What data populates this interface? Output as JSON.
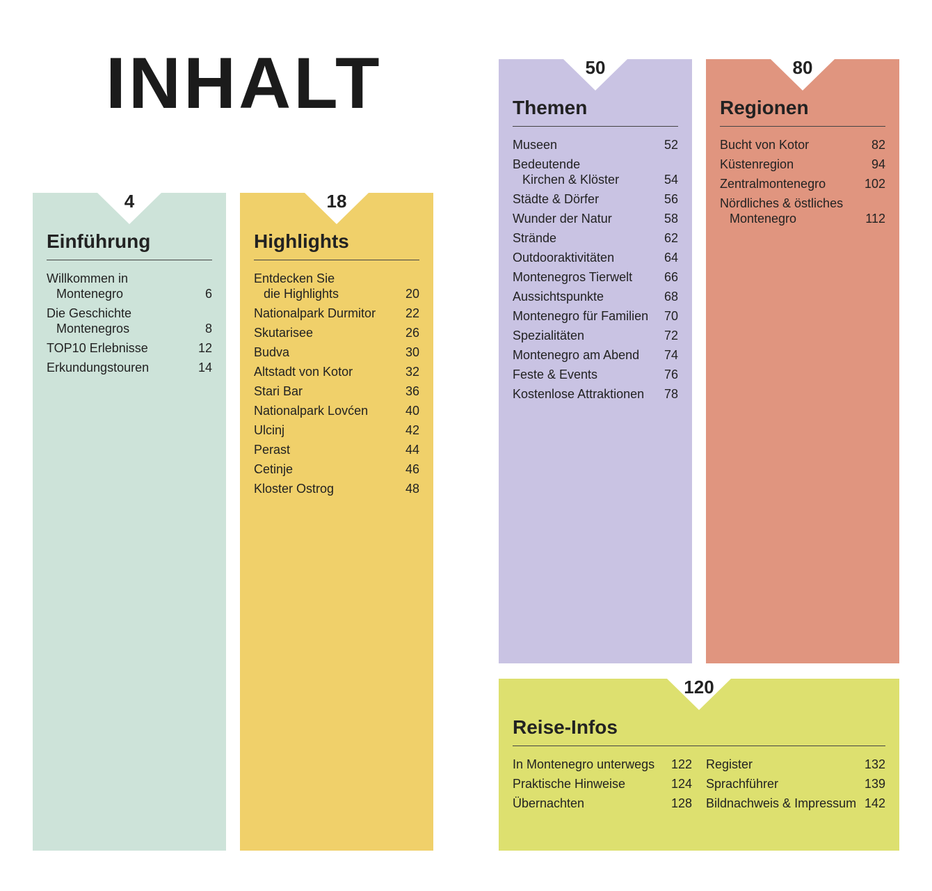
{
  "title": "INHALT",
  "sections": [
    {
      "page": 4,
      "title": "Einführung",
      "columns": [
        [
          {
            "lines": [
              "Willkommen in",
              "Montenegro"
            ],
            "page": 6
          },
          {
            "lines": [
              "Die Geschichte",
              "Montenegros"
            ],
            "page": 8
          },
          {
            "lines": [
              "TOP10 Erlebnisse"
            ],
            "page": 12
          },
          {
            "lines": [
              "Erkundungstouren"
            ],
            "page": 14
          }
        ]
      ]
    },
    {
      "page": 18,
      "title": "Highlights",
      "columns": [
        [
          {
            "lines": [
              "Entdecken Sie",
              "die Highlights"
            ],
            "page": 20
          },
          {
            "lines": [
              "Nationalpark Durmitor"
            ],
            "page": 22
          },
          {
            "lines": [
              "Skutarisee"
            ],
            "page": 26
          },
          {
            "lines": [
              "Budva"
            ],
            "page": 30
          },
          {
            "lines": [
              "Altstadt von Kotor"
            ],
            "page": 32
          },
          {
            "lines": [
              "Stari Bar"
            ],
            "page": 36
          },
          {
            "lines": [
              "Nationalpark Lovćen"
            ],
            "page": 40
          },
          {
            "lines": [
              "Ulcinj"
            ],
            "page": 42
          },
          {
            "lines": [
              "Perast"
            ],
            "page": 44
          },
          {
            "lines": [
              "Cetinje"
            ],
            "page": 46
          },
          {
            "lines": [
              "Kloster Ostrog"
            ],
            "page": 48
          }
        ]
      ]
    },
    {
      "page": 50,
      "title": "Themen",
      "columns": [
        [
          {
            "lines": [
              "Museen"
            ],
            "page": 52
          },
          {
            "lines": [
              "Bedeutende",
              "Kirchen & Klöster"
            ],
            "page": 54
          },
          {
            "lines": [
              "Städte & Dörfer"
            ],
            "page": 56
          },
          {
            "lines": [
              "Wunder der Natur"
            ],
            "page": 58
          },
          {
            "lines": [
              "Strände"
            ],
            "page": 62
          },
          {
            "lines": [
              "Outdooraktivitäten"
            ],
            "page": 64
          },
          {
            "lines": [
              "Montenegros Tierwelt"
            ],
            "page": 66
          },
          {
            "lines": [
              "Aussichtspunkte"
            ],
            "page": 68
          },
          {
            "lines": [
              "Montenegro für Familien"
            ],
            "page": 70
          },
          {
            "lines": [
              "Spezialitäten"
            ],
            "page": 72
          },
          {
            "lines": [
              "Montenegro am Abend"
            ],
            "page": 74
          },
          {
            "lines": [
              "Feste & Events"
            ],
            "page": 76
          },
          {
            "lines": [
              "Kostenlose Attraktionen"
            ],
            "page": 78
          }
        ]
      ]
    },
    {
      "page": 80,
      "title": "Regionen",
      "columns": [
        [
          {
            "lines": [
              "Bucht von Kotor"
            ],
            "page": 82
          },
          {
            "lines": [
              "Küstenregion"
            ],
            "page": 94
          },
          {
            "lines": [
              "Zentralmontenegro"
            ],
            "page": 102
          },
          {
            "lines": [
              "Nördliches & östliches",
              "Montenegro"
            ],
            "page": 112
          }
        ]
      ]
    },
    {
      "page": 120,
      "title": "Reise-Infos",
      "columns": [
        [
          {
            "lines": [
              "In Montenegro unterwegs"
            ],
            "page": 122
          },
          {
            "lines": [
              "Praktische Hinweise"
            ],
            "page": 124
          },
          {
            "lines": [
              "Übernachten"
            ],
            "page": 128
          }
        ],
        [
          {
            "lines": [
              "Register"
            ],
            "page": 132
          },
          {
            "lines": [
              "Sprachführer"
            ],
            "page": 139
          },
          {
            "lines": [
              "Bildnachweis & Impressum"
            ],
            "page": 142
          }
        ]
      ]
    }
  ]
}
